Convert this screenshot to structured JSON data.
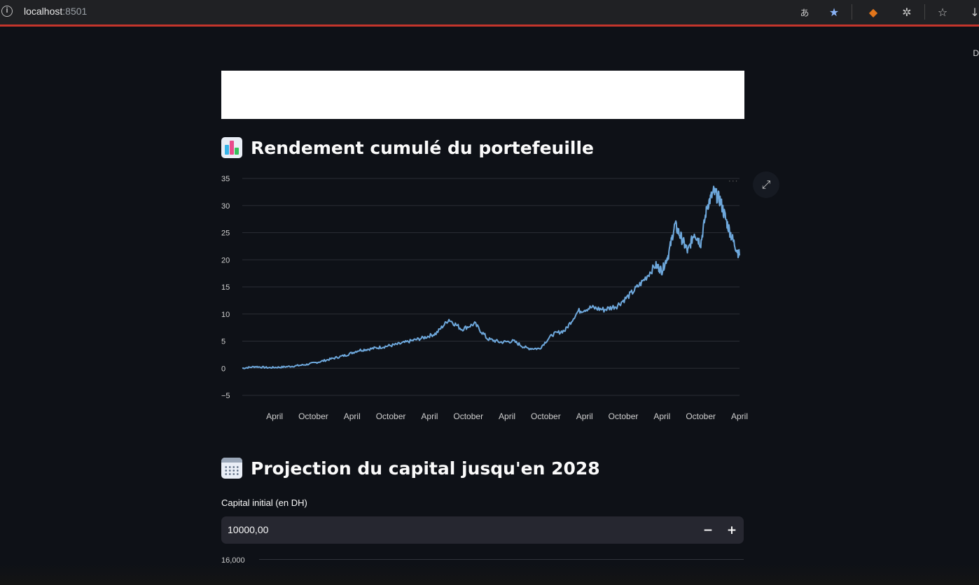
{
  "browser": {
    "host": "localhost",
    "port": ":8501"
  },
  "corner_text": "D",
  "sections": [
    {
      "title": "Rendement cumulé du portefeuille"
    },
    {
      "title": "Projection du capital jusqu'en 2028"
    }
  ],
  "capital_input": {
    "label": "Capital initial (en DH)",
    "value": "10000,00",
    "decrement": "−",
    "increment": "+"
  },
  "second_chart": {
    "first_tick": "16,000"
  },
  "colors": {
    "line": "#6ea8dc",
    "background": "#0e1117",
    "grid": "#2a2d35"
  },
  "chart_data": {
    "type": "line",
    "title": "",
    "xlabel": "",
    "ylabel": "",
    "ylim": [
      -5,
      35
    ],
    "y_ticks": [
      "35",
      "30",
      "25",
      "20",
      "15",
      "10",
      "5",
      "0",
      "−5"
    ],
    "y_tick_values": [
      35,
      30,
      25,
      20,
      15,
      10,
      5,
      0,
      -5
    ],
    "x_ticks": [
      "April",
      "October",
      "April",
      "October",
      "April",
      "October",
      "April",
      "October",
      "April",
      "October",
      "April",
      "October",
      "April"
    ],
    "x_tick_months": [
      3,
      9,
      15,
      21,
      27,
      33,
      39,
      45,
      51,
      57,
      63,
      69,
      75
    ],
    "xlim_months": [
      -2,
      75
    ],
    "grid": true,
    "legend": "none",
    "series": [
      {
        "x_months": [
          -2,
          0,
          2,
          4,
          6,
          8,
          10,
          12,
          14,
          16,
          18,
          20,
          22,
          24,
          26,
          28,
          30,
          32,
          34,
          36,
          38,
          40,
          42,
          44,
          46,
          48,
          50,
          52,
          54,
          56,
          58,
          60,
          62,
          63,
          64,
          65,
          66,
          67,
          68,
          69,
          70,
          71,
          72,
          73,
          74,
          75
        ],
        "y": [
          0,
          0.3,
          0.1,
          0.2,
          0.4,
          0.7,
          1.2,
          1.8,
          2.4,
          3.3,
          3.6,
          4.0,
          4.4,
          5.0,
          5.6,
          6.4,
          9.0,
          7.2,
          8.2,
          5.4,
          4.8,
          5.0,
          3.7,
          3.6,
          6.2,
          7.0,
          10.5,
          11.2,
          10.8,
          11.5,
          13.5,
          16.0,
          19.0,
          18.0,
          21.0,
          26.5,
          24.0,
          21.5,
          25.0,
          23.0,
          30.0,
          32.5,
          31.0,
          27.0,
          23.5,
          20.8
        ]
      }
    ]
  }
}
